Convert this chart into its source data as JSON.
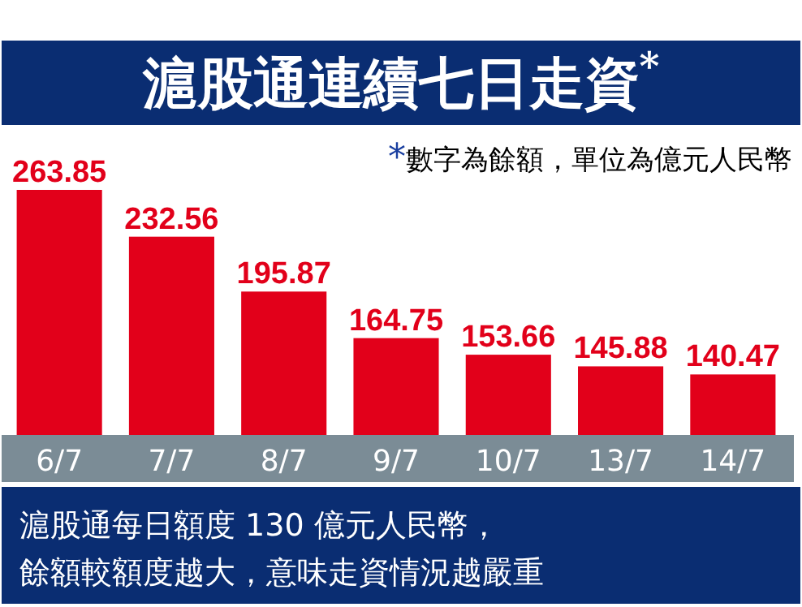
{
  "chart_data": {
    "type": "bar",
    "title": "滬股通連續七日走資$^{*}$",
    "subtitle": "*數字為餘額，單位為億元人民幣",
    "categories": [
      "6/7",
      "7/7",
      "8/7",
      "9/7",
      "10/7",
      "13/7",
      "14/7"
    ],
    "values": [
      263.85,
      232.56,
      195.87,
      164.75,
      153.66,
      145.88,
      140.47
    ],
    "color": "#e2001a",
    "ylim": [
      100,
      263.85
    ],
    "data_labels": true,
    "tick_labels": "x",
    "annotations": [
      "滬股通每日額度 130 億元人民幣，",
      "餘額較額度越大，意味走資情況越嚴重"
    ]
  }
}
